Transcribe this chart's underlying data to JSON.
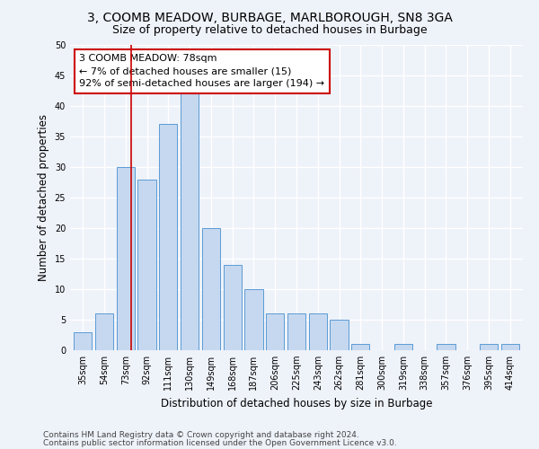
{
  "title": "3, COOMB MEADOW, BURBAGE, MARLBOROUGH, SN8 3GA",
  "subtitle": "Size of property relative to detached houses in Burbage",
  "xlabel": "Distribution of detached houses by size in Burbage",
  "ylabel": "Number of detached properties",
  "categories": [
    "35sqm",
    "54sqm",
    "73sqm",
    "92sqm",
    "111sqm",
    "130sqm",
    "149sqm",
    "168sqm",
    "187sqm",
    "206sqm",
    "225sqm",
    "243sqm",
    "262sqm",
    "281sqm",
    "300sqm",
    "319sqm",
    "338sqm",
    "357sqm",
    "376sqm",
    "395sqm",
    "414sqm"
  ],
  "values": [
    3,
    6,
    30,
    28,
    37,
    42,
    20,
    14,
    10,
    6,
    6,
    6,
    5,
    1,
    0,
    1,
    0,
    1,
    0,
    1,
    1
  ],
  "bar_color": "#c5d8f0",
  "bar_edge_color": "#5b9bd5",
  "marker_label": "3 COOMB MEADOW: 78sqm",
  "pct_smaller": "← 7% of detached houses are smaller (15)",
  "pct_larger": "92% of semi-detached houses are larger (194) →",
  "annotation_box_color": "#ffffff",
  "annotation_box_edge": "#cc0000",
  "marker_line_color": "#cc0000",
  "ylim": [
    0,
    50
  ],
  "yticks": [
    0,
    5,
    10,
    15,
    20,
    25,
    30,
    35,
    40,
    45,
    50
  ],
  "footer1": "Contains HM Land Registry data © Crown copyright and database right 2024.",
  "footer2": "Contains public sector information licensed under the Open Government Licence v3.0.",
  "background_color": "#eef2f9",
  "grid_color": "#ffffff",
  "title_fontsize": 10,
  "subtitle_fontsize": 9,
  "axis_label_fontsize": 8.5,
  "tick_fontsize": 7,
  "annotation_fontsize": 8,
  "footer_fontsize": 6.5
}
